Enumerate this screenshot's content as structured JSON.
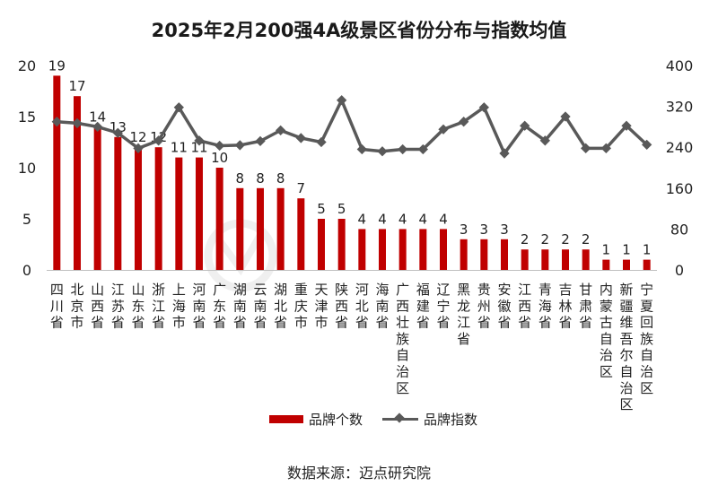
{
  "chart_data": {
    "type": "bar",
    "title": "2025年2月200强4A级景区省份分布与指数均值",
    "categories": [
      "四川省",
      "北京市",
      "山西省",
      "江苏省",
      "山东省",
      "浙江省",
      "上海市",
      "河南省",
      "广东省",
      "湖南省",
      "云南省",
      "湖北省",
      "重庆市",
      "天津市",
      "陕西省",
      "河北省",
      "海南省",
      "广西壮族自治区",
      "福建省",
      "辽宁省",
      "黑龙江省",
      "贵州省",
      "安徽省",
      "江西省",
      "青海省",
      "吉林省",
      "甘肃省",
      "内蒙古自治区",
      "新疆维吾尔自治区",
      "宁夏回族自治区"
    ],
    "series": [
      {
        "name": "品牌个数",
        "type": "bar",
        "axis": "left",
        "color": "#c00000",
        "values": [
          19,
          17,
          14,
          13,
          12,
          12,
          11,
          11,
          10,
          8,
          8,
          8,
          7,
          5,
          5,
          4,
          4,
          4,
          4,
          4,
          3,
          3,
          3,
          2,
          2,
          2,
          2,
          1,
          1,
          1
        ]
      },
      {
        "name": "品牌指数",
        "type": "line",
        "axis": "right",
        "color": "#595959",
        "values": [
          290,
          287,
          280,
          268,
          238,
          253,
          318,
          253,
          243,
          244,
          252,
          273,
          258,
          250,
          332,
          236,
          232,
          236,
          236,
          275,
          290,
          318,
          228,
          282,
          253,
          300,
          238,
          238,
          282,
          245
        ]
      }
    ],
    "y_left": {
      "min": 0,
      "max": 20,
      "ticks": [
        0,
        5,
        10,
        15,
        20
      ]
    },
    "y_right": {
      "min": 0,
      "max": 400,
      "ticks": [
        0,
        80,
        160,
        240,
        320,
        400
      ]
    },
    "legend_position": "bottom",
    "grid": false
  },
  "source_note": "数据来源：迈点研究院"
}
